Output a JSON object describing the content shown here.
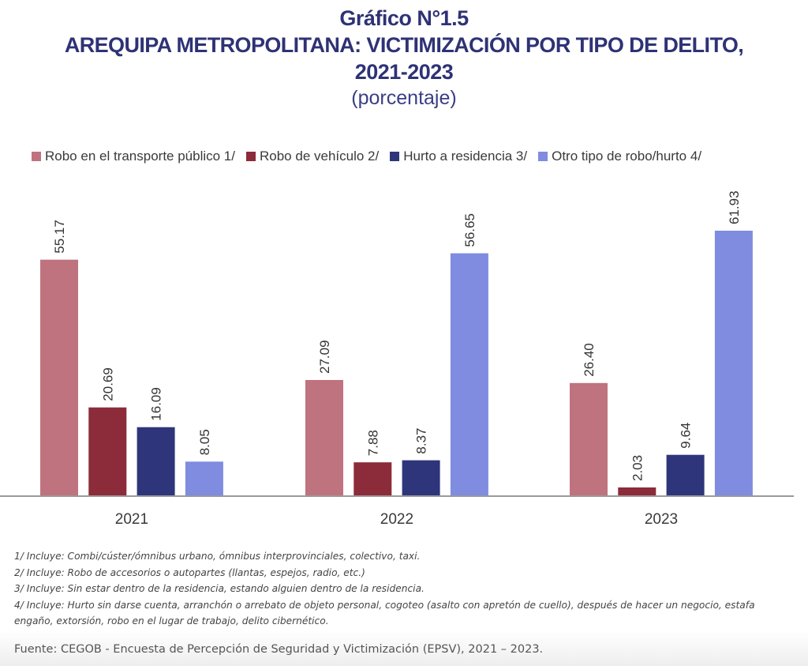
{
  "header": {
    "figure_number": "Gráfico N°1.5",
    "title_line1": "AREQUIPA METROPOLITANA: VICTIMIZACIÓN POR TIPO DE DELITO,",
    "title_line2": "2021-2023",
    "subtitle": "(porcentaje)"
  },
  "chart_data": {
    "type": "bar",
    "title": "AREQUIPA METROPOLITANA: VICTIMIZACIÓN POR TIPO DE DELITO, 2021-2023",
    "subtitle": "(porcentaje)",
    "xlabel": "",
    "ylabel": "",
    "ylim": [
      0,
      65
    ],
    "grid": false,
    "legend_position": "top",
    "categories": [
      "2021",
      "2022",
      "2023"
    ],
    "series": [
      {
        "name": "Robo en el transporte público 1/",
        "color": "#bf737e",
        "values": [
          55.17,
          27.09,
          26.4
        ],
        "labels": [
          "55.17",
          "27.09",
          "26.40"
        ]
      },
      {
        "name": "Robo de vehículo 2/",
        "color": "#8c2b3a",
        "values": [
          20.69,
          7.88,
          2.03
        ],
        "labels": [
          "20.69",
          "7.88",
          "2.03"
        ]
      },
      {
        "name": "Hurto a residencia 3/",
        "color": "#2f357a",
        "values": [
          16.09,
          8.37,
          9.64
        ],
        "labels": [
          "16.09",
          "8.37",
          "9.64"
        ]
      },
      {
        "name": "Otro tipo de robo/hurto 4/",
        "color": "#7f8ce0",
        "values": [
          8.05,
          56.65,
          61.93
        ],
        "labels": [
          "8.05",
          "56.65",
          "61.93"
        ]
      }
    ]
  },
  "notes": [
    "1/ Incluye: Combi/cúster/ómnibus urbano, ómnibus interprovinciales, colectivo, taxi.",
    "2/ Incluye: Robo de accesorios o autopartes (llantas, espejos, radio, etc.)",
    "3/ Incluye: Sin estar dentro de la residencia, estando alguien dentro de  la residencia.",
    "4/ Incluye: Hurto sin darse cuenta, arranchón o arrebato de objeto personal,  cogoteo (asalto con apretón de cuello), después de hacer un negocio, estafa engaño, extorsión, robo en el lugar de trabajo, delito cibernético."
  ],
  "source": "Fuente: CEGOB - Encuesta de Percepción de Seguridad y Victimización (EPSV), 2021 – 2023."
}
